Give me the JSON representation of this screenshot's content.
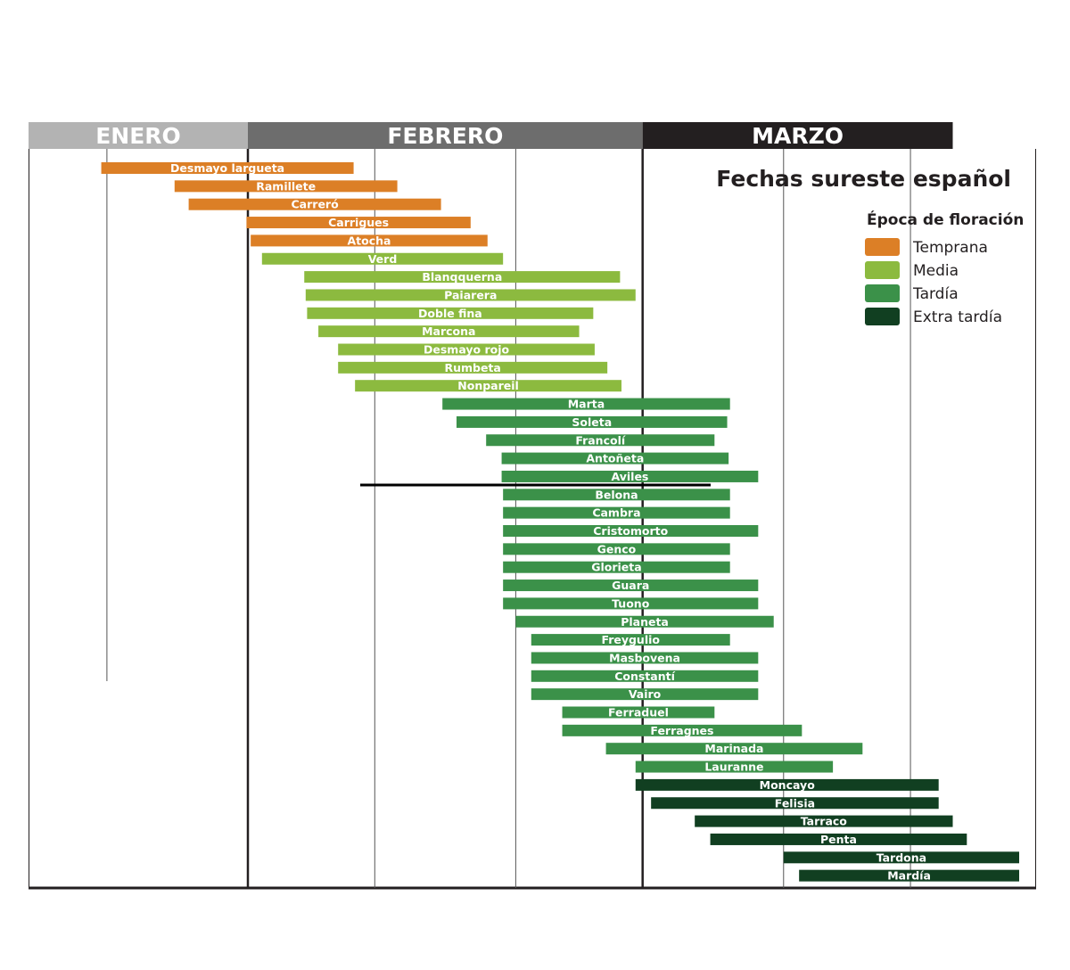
{
  "chart_data": {
    "type": "bar",
    "orientation": "horizontal-range",
    "title": "Fechas sureste español",
    "months": [
      {
        "label": "ENERO",
        "start": 15,
        "end": 31,
        "color": "#b3b3b3"
      },
      {
        "label": "FEBRERO",
        "start": 31,
        "end": 59,
        "color": "#6d6d6d"
      },
      {
        "label": "MARZO",
        "start": 59,
        "end": 81,
        "color": "#231f20"
      }
    ],
    "gridlines": [
      21,
      31,
      40,
      50,
      59,
      69,
      78
    ],
    "x_unit": "day of year",
    "legend": {
      "title": "Época de floración",
      "placement": "top-right",
      "items": [
        {
          "key": "temprana",
          "label": "Temprana",
          "color": "#dc7f26"
        },
        {
          "key": "media",
          "label": "Media",
          "color": "#8cba3f"
        },
        {
          "key": "tardia",
          "label": "Tardía",
          "color": "#3b9149"
        },
        {
          "key": "extra",
          "label": "Extra tardía",
          "color": "#113f21"
        }
      ]
    },
    "series": [
      {
        "name": "Desmayo largueta",
        "group": "temprana",
        "start": 20.6,
        "end": 38.5
      },
      {
        "name": "Ramillete",
        "group": "temprana",
        "start": 25.8,
        "end": 41.6
      },
      {
        "name": "Carreró",
        "group": "temprana",
        "start": 26.8,
        "end": 44.7
      },
      {
        "name": "Carrigues",
        "group": "temprana",
        "start": 30.9,
        "end": 46.8
      },
      {
        "name": "Atocha",
        "group": "temprana",
        "start": 31.2,
        "end": 48.0
      },
      {
        "name": "Verd",
        "group": "media",
        "start": 32.0,
        "end": 49.1
      },
      {
        "name": "Blanqquerna",
        "group": "media",
        "start": 35.0,
        "end": 57.4
      },
      {
        "name": "Paiarera",
        "group": "media",
        "start": 35.1,
        "end": 58.5
      },
      {
        "name": "Doble fina",
        "group": "media",
        "start": 35.2,
        "end": 55.5
      },
      {
        "name": "Marcona",
        "group": "media",
        "start": 36.0,
        "end": 54.5
      },
      {
        "name": "Desmayo rojo",
        "group": "media",
        "start": 37.4,
        "end": 55.6
      },
      {
        "name": "Rumbeta",
        "group": "media",
        "start": 37.4,
        "end": 56.5
      },
      {
        "name": "Nonpareil",
        "group": "media",
        "start": 38.6,
        "end": 57.5
      },
      {
        "name": "Marta",
        "group": "tardia",
        "start": 44.8,
        "end": 65.2
      },
      {
        "name": "Soleta",
        "group": "tardia",
        "start": 45.8,
        "end": 65.0
      },
      {
        "name": "Francolí",
        "group": "tardia",
        "start": 47.9,
        "end": 64.1
      },
      {
        "name": "Antoñeta",
        "group": "tardia",
        "start": 49.0,
        "end": 65.1
      },
      {
        "name": "Aviles",
        "group": "tardia",
        "start": 49.0,
        "end": 67.2
      },
      {
        "name": "Belona",
        "group": "tardia",
        "start": 49.1,
        "end": 65.2
      },
      {
        "name": "Cambra",
        "group": "tardia",
        "start": 49.1,
        "end": 65.2
      },
      {
        "name": "Cristomorto",
        "group": "tardia",
        "start": 49.1,
        "end": 67.2
      },
      {
        "name": "Genco",
        "group": "tardia",
        "start": 49.1,
        "end": 65.2
      },
      {
        "name": "Glorieta",
        "group": "tardia",
        "start": 49.1,
        "end": 65.2
      },
      {
        "name": "Guara",
        "group": "tardia",
        "start": 49.1,
        "end": 67.2
      },
      {
        "name": "Tuono",
        "group": "tardia",
        "start": 49.1,
        "end": 67.2
      },
      {
        "name": "Planeta",
        "group": "tardia",
        "start": 50.0,
        "end": 68.3
      },
      {
        "name": "Freygulio",
        "group": "tardia",
        "start": 51.1,
        "end": 65.2
      },
      {
        "name": "Masbovena",
        "group": "tardia",
        "start": 51.1,
        "end": 67.2
      },
      {
        "name": "Constantí",
        "group": "tardia",
        "start": 51.1,
        "end": 67.2
      },
      {
        "name": "Vairo",
        "group": "tardia",
        "start": 51.1,
        "end": 67.2
      },
      {
        "name": "Ferraduel",
        "group": "tardia",
        "start": 53.3,
        "end": 64.1
      },
      {
        "name": "Ferragnes",
        "group": "tardia",
        "start": 53.3,
        "end": 70.3
      },
      {
        "name": "Marinada",
        "group": "tardia",
        "start": 56.4,
        "end": 74.6
      },
      {
        "name": "Lauranne",
        "group": "tardia",
        "start": 58.5,
        "end": 72.5
      },
      {
        "name": "Moncayo",
        "group": "extra",
        "start": 58.5,
        "end": 80.0
      },
      {
        "name": "Felisia",
        "group": "extra",
        "start": 59.6,
        "end": 80.0
      },
      {
        "name": "Tarraco",
        "group": "extra",
        "start": 62.7,
        "end": 81.0
      },
      {
        "name": "Penta",
        "group": "extra",
        "start": 63.8,
        "end": 82.0
      },
      {
        "name": "Tardona",
        "group": "extra",
        "start": 69.0,
        "end": 88.2
      },
      {
        "name": "Mardía",
        "group": "extra",
        "start": 70.1,
        "end": 89.3
      }
    ]
  }
}
